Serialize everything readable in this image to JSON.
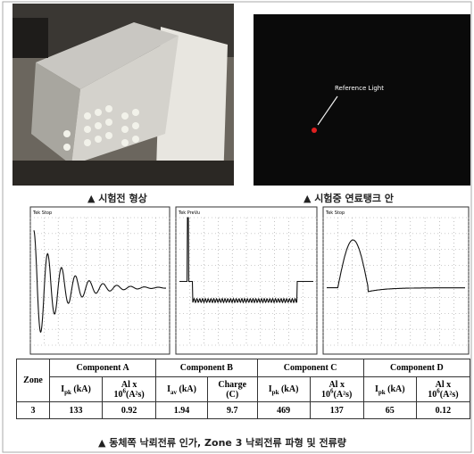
{
  "photos": {
    "left_caption": "▲ 시험전 형상",
    "right_caption": "▲ 시험중 연료탱크 안",
    "annotation": "Reference Light"
  },
  "scopes": [
    {
      "status": "Tek Stop"
    },
    {
      "status": "Tek PreVu"
    },
    {
      "status": "Tek Stop"
    }
  ],
  "table": {
    "zone_header": "Zone",
    "groups": [
      "Component A",
      "Component B",
      "Component C",
      "Component D"
    ],
    "columns": [
      {
        "symbol": "I",
        "sub": "pk",
        "unit": "(kA)"
      },
      {
        "symbol": "Al x",
        "power": "10",
        "sup": "6",
        "unit": "(A²s)"
      },
      {
        "symbol": "I",
        "sub": "av",
        "unit": "(kA)"
      },
      {
        "symbol": "Charge",
        "unit": "(C)"
      },
      {
        "symbol": "I",
        "sub": "pk",
        "unit": "(kA)"
      },
      {
        "symbol": "Al x",
        "power": "10",
        "sup": "6",
        "unit": "(A²s)"
      },
      {
        "symbol": "I",
        "sub": "pk",
        "unit": "(kA)"
      },
      {
        "symbol": "Al x",
        "power": "10",
        "sup": "6",
        "unit": "(A²s)"
      }
    ],
    "rows": [
      [
        3,
        133,
        0.92,
        1.94,
        9.7,
        469,
        137,
        65,
        0.12
      ]
    ]
  },
  "caption": "▲ 동체쪽 낙뢰전류 인가, Zone 3 낙뢰전류 파형 및 전류량"
}
